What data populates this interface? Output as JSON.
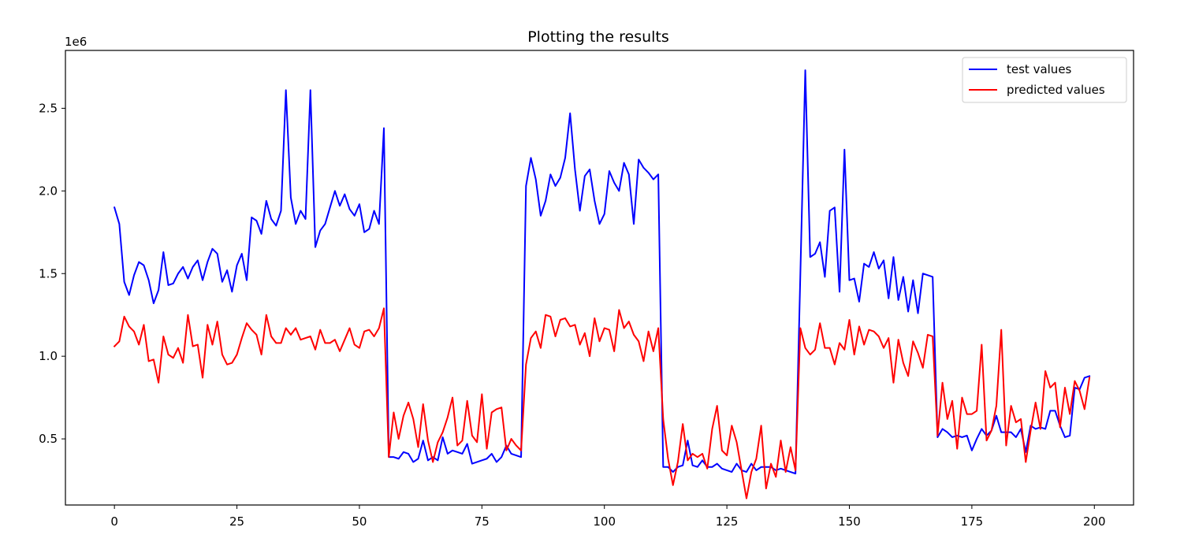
{
  "chart_data": {
    "type": "line",
    "title": "Plotting the results",
    "xlabel": "",
    "ylabel": "",
    "y_offset_label": "1e6",
    "xlim": [
      -10,
      208
    ],
    "ylim": [
      100000,
      2850000
    ],
    "xticks": [
      0,
      25,
      50,
      75,
      100,
      125,
      150,
      175,
      200
    ],
    "xtick_labels": [
      "0",
      "25",
      "50",
      "75",
      "100",
      "125",
      "150",
      "175",
      "200"
    ],
    "yticks": [
      500000,
      1000000,
      1500000,
      2000000,
      2500000
    ],
    "ytick_labels": [
      "0.5",
      "1.0",
      "1.5",
      "2.0",
      "2.5"
    ],
    "legend_position": "top-right",
    "grid": false,
    "series": [
      {
        "name": "test values",
        "color": "#0000ff",
        "x_start": 0,
        "values": [
          1900000,
          1800000,
          1450000,
          1370000,
          1490000,
          1570000,
          1550000,
          1460000,
          1320000,
          1400000,
          1630000,
          1430000,
          1440000,
          1500000,
          1540000,
          1470000,
          1540000,
          1580000,
          1460000,
          1570000,
          1650000,
          1620000,
          1450000,
          1520000,
          1390000,
          1550000,
          1620000,
          1460000,
          1840000,
          1820000,
          1740000,
          1940000,
          1830000,
          1790000,
          1880000,
          2610000,
          1960000,
          1800000,
          1880000,
          1830000,
          2610000,
          1660000,
          1760000,
          1800000,
          1900000,
          2000000,
          1910000,
          1980000,
          1890000,
          1850000,
          1920000,
          1750000,
          1770000,
          1880000,
          1800000,
          2380000,
          390000,
          390000,
          380000,
          420000,
          410000,
          360000,
          380000,
          490000,
          370000,
          390000,
          370000,
          510000,
          410000,
          430000,
          420000,
          410000,
          470000,
          350000,
          360000,
          370000,
          380000,
          410000,
          360000,
          390000,
          460000,
          410000,
          400000,
          390000,
          2030000,
          2200000,
          2070000,
          1850000,
          1940000,
          2100000,
          2030000,
          2080000,
          2200000,
          2470000,
          2130000,
          1880000,
          2090000,
          2130000,
          1940000,
          1800000,
          1860000,
          2120000,
          2050000,
          2000000,
          2170000,
          2100000,
          1800000,
          2190000,
          2140000,
          2110000,
          2070000,
          2100000,
          330000,
          330000,
          300000,
          330000,
          340000,
          490000,
          340000,
          330000,
          370000,
          330000,
          330000,
          350000,
          320000,
          310000,
          300000,
          350000,
          310000,
          300000,
          350000,
          310000,
          330000,
          330000,
          330000,
          310000,
          320000,
          310000,
          300000,
          290000,
          1500000,
          2730000,
          1600000,
          1620000,
          1690000,
          1480000,
          1880000,
          1900000,
          1390000,
          2250000,
          1460000,
          1470000,
          1330000,
          1560000,
          1540000,
          1630000,
          1530000,
          1580000,
          1350000,
          1600000,
          1340000,
          1480000,
          1270000,
          1460000,
          1260000,
          1500000,
          1490000,
          1480000,
          510000,
          560000,
          540000,
          510000,
          520000,
          510000,
          520000,
          430000,
          500000,
          560000,
          520000,
          550000,
          640000,
          540000,
          540000,
          540000,
          510000,
          560000,
          420000,
          580000,
          560000,
          570000,
          560000,
          670000,
          670000,
          580000,
          510000,
          520000,
          810000,
          800000,
          870000,
          880000
        ]
      },
      {
        "name": "predicted values",
        "color": "#ff0000",
        "x_start": 0,
        "values": [
          1060000,
          1090000,
          1240000,
          1180000,
          1150000,
          1070000,
          1190000,
          970000,
          980000,
          840000,
          1120000,
          1010000,
          990000,
          1050000,
          960000,
          1250000,
          1060000,
          1070000,
          870000,
          1190000,
          1070000,
          1210000,
          1010000,
          950000,
          960000,
          1010000,
          1110000,
          1200000,
          1160000,
          1130000,
          1010000,
          1250000,
          1120000,
          1080000,
          1080000,
          1170000,
          1130000,
          1170000,
          1100000,
          1110000,
          1120000,
          1040000,
          1160000,
          1080000,
          1080000,
          1100000,
          1030000,
          1100000,
          1170000,
          1070000,
          1050000,
          1150000,
          1160000,
          1120000,
          1170000,
          1290000,
          390000,
          660000,
          500000,
          640000,
          720000,
          620000,
          450000,
          710000,
          490000,
          360000,
          480000,
          540000,
          630000,
          750000,
          460000,
          490000,
          730000,
          520000,
          480000,
          770000,
          440000,
          660000,
          680000,
          690000,
          430000,
          500000,
          460000,
          430000,
          950000,
          1110000,
          1150000,
          1050000,
          1250000,
          1240000,
          1120000,
          1220000,
          1230000,
          1180000,
          1190000,
          1070000,
          1140000,
          1000000,
          1230000,
          1090000,
          1170000,
          1160000,
          1030000,
          1280000,
          1170000,
          1210000,
          1130000,
          1090000,
          970000,
          1150000,
          1030000,
          1170000,
          620000,
          380000,
          220000,
          360000,
          590000,
          370000,
          410000,
          390000,
          410000,
          320000,
          560000,
          700000,
          430000,
          400000,
          580000,
          480000,
          310000,
          140000,
          300000,
          380000,
          580000,
          200000,
          350000,
          270000,
          490000,
          300000,
          450000,
          310000,
          1170000,
          1050000,
          1010000,
          1040000,
          1200000,
          1050000,
          1050000,
          950000,
          1080000,
          1040000,
          1220000,
          1010000,
          1180000,
          1070000,
          1160000,
          1150000,
          1120000,
          1050000,
          1110000,
          840000,
          1100000,
          960000,
          880000,
          1090000,
          1020000,
          930000,
          1130000,
          1120000,
          520000,
          840000,
          620000,
          730000,
          440000,
          750000,
          650000,
          650000,
          670000,
          1070000,
          490000,
          550000,
          700000,
          1160000,
          460000,
          700000,
          600000,
          620000,
          360000,
          550000,
          720000,
          560000,
          910000,
          810000,
          840000,
          570000,
          810000,
          650000,
          850000,
          790000,
          680000,
          870000
        ]
      }
    ]
  }
}
